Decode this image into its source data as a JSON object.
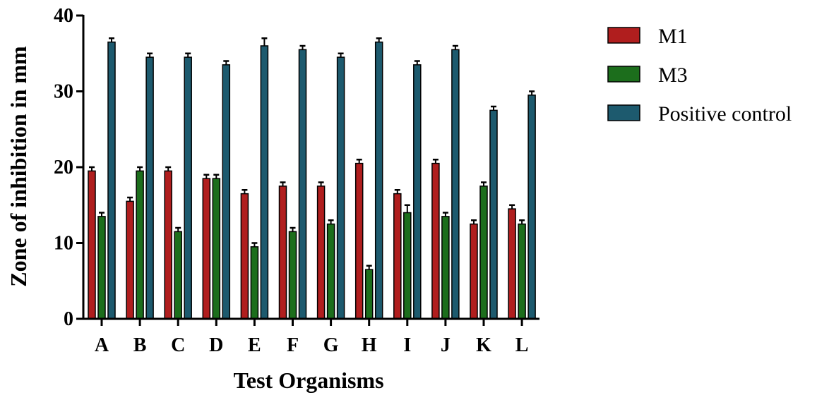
{
  "chart_data": {
    "type": "bar",
    "title": "",
    "xlabel": "Test Organisms",
    "ylabel": "Zone of inhibition in mm",
    "ylim": [
      0,
      40
    ],
    "yticks": [
      0,
      10,
      20,
      30,
      40
    ],
    "categories": [
      "A",
      "B",
      "C",
      "D",
      "E",
      "F",
      "G",
      "H",
      "I",
      "J",
      "K",
      "L"
    ],
    "series": [
      {
        "name": "M1",
        "color": "#b01e1e",
        "values": [
          19.5,
          15.5,
          19.5,
          18.5,
          16.5,
          17.5,
          17.5,
          20.5,
          16.5,
          20.5,
          12.5,
          14.5
        ],
        "errors": [
          0.5,
          0.5,
          0.5,
          0.5,
          0.5,
          0.5,
          0.5,
          0.5,
          0.5,
          0.5,
          0.5,
          0.5
        ]
      },
      {
        "name": "M3",
        "color": "#1c6e1c",
        "values": [
          13.5,
          19.5,
          11.5,
          18.5,
          9.5,
          11.5,
          12.5,
          6.5,
          14.0,
          13.5,
          17.5,
          12.5
        ],
        "errors": [
          0.5,
          0.5,
          0.5,
          0.5,
          0.5,
          0.5,
          0.5,
          0.5,
          1.0,
          0.5,
          0.5,
          0.5
        ]
      },
      {
        "name": "Positive control",
        "color": "#1d5a6e",
        "values": [
          36.5,
          34.5,
          34.5,
          33.5,
          36.0,
          35.5,
          34.5,
          36.5,
          33.5,
          35.5,
          27.5,
          29.5
        ],
        "errors": [
          0.5,
          0.5,
          0.5,
          0.5,
          1.0,
          0.5,
          0.5,
          0.5,
          0.5,
          0.5,
          0.5,
          0.5
        ]
      }
    ],
    "grid": false,
    "legend_position": "right"
  }
}
